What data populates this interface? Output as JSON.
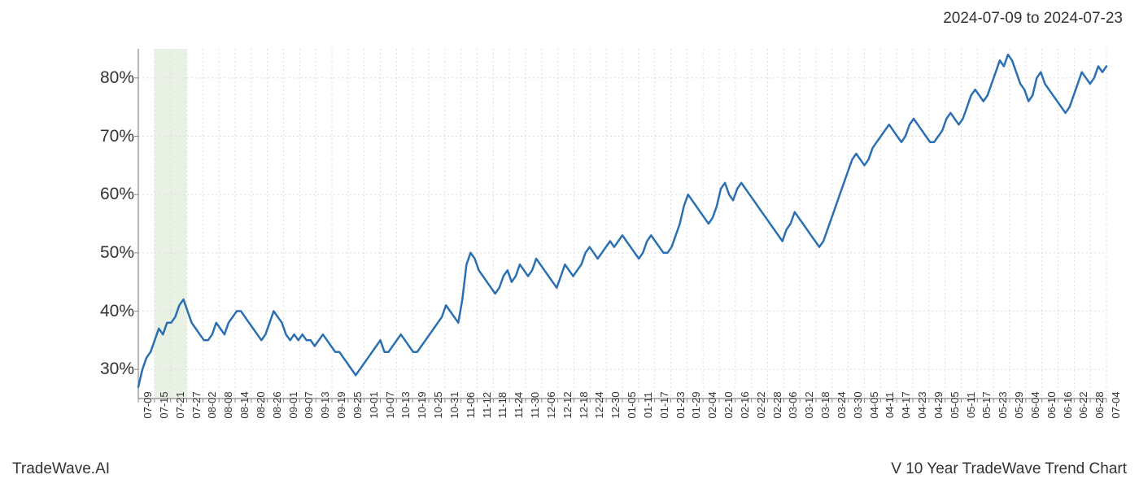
{
  "header": {
    "date_range": "2024-07-09 to 2024-07-23"
  },
  "footer": {
    "brand": "TradeWave.AI",
    "chart_title": "V 10 Year TradeWave Trend Chart"
  },
  "chart": {
    "type": "line",
    "background_color": "#ffffff",
    "grid_color": "#dddddd",
    "axis_color": "#888888",
    "line_color": "#2b6fb3",
    "line_width": 2.5,
    "highlight_band": {
      "color": "#d9e8d0",
      "opacity": 0.6,
      "x_start_index": 1,
      "x_end_index": 3
    },
    "ylim": [
      25,
      85
    ],
    "y_ticks": [
      30,
      40,
      50,
      60,
      70,
      80
    ],
    "y_tick_suffix": "%",
    "y_tick_fontsize": 21,
    "x_tick_fontsize": 13,
    "x_tick_labels": [
      "07-09",
      "07-15",
      "07-21",
      "07-27",
      "08-02",
      "08-08",
      "08-14",
      "08-20",
      "08-26",
      "09-01",
      "09-07",
      "09-13",
      "09-19",
      "09-25",
      "10-01",
      "10-07",
      "10-13",
      "10-19",
      "10-25",
      "10-31",
      "11-06",
      "11-12",
      "11-18",
      "11-24",
      "11-30",
      "12-06",
      "12-12",
      "12-18",
      "12-24",
      "12-30",
      "01-05",
      "01-11",
      "01-17",
      "01-23",
      "01-29",
      "02-04",
      "02-10",
      "02-16",
      "02-22",
      "02-28",
      "03-06",
      "03-12",
      "03-18",
      "03-24",
      "03-30",
      "04-05",
      "04-11",
      "04-17",
      "04-23",
      "04-29",
      "05-05",
      "05-11",
      "05-17",
      "05-23",
      "05-29",
      "06-04",
      "06-10",
      "06-16",
      "06-22",
      "06-28",
      "07-04"
    ],
    "series": {
      "values": [
        27,
        30,
        32,
        33,
        35,
        37,
        36,
        38,
        38,
        39,
        41,
        42,
        40,
        38,
        37,
        36,
        35,
        35,
        36,
        38,
        37,
        36,
        38,
        39,
        40,
        40,
        39,
        38,
        37,
        36,
        35,
        36,
        38,
        40,
        39,
        38,
        36,
        35,
        36,
        35,
        36,
        35,
        35,
        34,
        35,
        36,
        35,
        34,
        33,
        33,
        32,
        31,
        30,
        29,
        30,
        31,
        32,
        33,
        34,
        35,
        33,
        33,
        34,
        35,
        36,
        35,
        34,
        33,
        33,
        34,
        35,
        36,
        37,
        38,
        39,
        41,
        40,
        39,
        38,
        42,
        48,
        50,
        49,
        47,
        46,
        45,
        44,
        43,
        44,
        46,
        47,
        45,
        46,
        48,
        47,
        46,
        47,
        49,
        48,
        47,
        46,
        45,
        44,
        46,
        48,
        47,
        46,
        47,
        48,
        50,
        51,
        50,
        49,
        50,
        51,
        52,
        51,
        52,
        53,
        52,
        51,
        50,
        49,
        50,
        52,
        53,
        52,
        51,
        50,
        50,
        51,
        53,
        55,
        58,
        60,
        59,
        58,
        57,
        56,
        55,
        56,
        58,
        61,
        62,
        60,
        59,
        61,
        62,
        61,
        60,
        59,
        58,
        57,
        56,
        55,
        54,
        53,
        52,
        54,
        55,
        57,
        56,
        55,
        54,
        53,
        52,
        51,
        52,
        54,
        56,
        58,
        60,
        62,
        64,
        66,
        67,
        66,
        65,
        66,
        68,
        69,
        70,
        71,
        72,
        71,
        70,
        69,
        70,
        72,
        73,
        72,
        71,
        70,
        69,
        69,
        70,
        71,
        73,
        74,
        73,
        72,
        73,
        75,
        77,
        78,
        77,
        76,
        77,
        79,
        81,
        83,
        82,
        84,
        83,
        81,
        79,
        78,
        76,
        77,
        80,
        81,
        79,
        78,
        77,
        76,
        75,
        74,
        75,
        77,
        79,
        81,
        80,
        79,
        80,
        82,
        81,
        82
      ]
    }
  }
}
